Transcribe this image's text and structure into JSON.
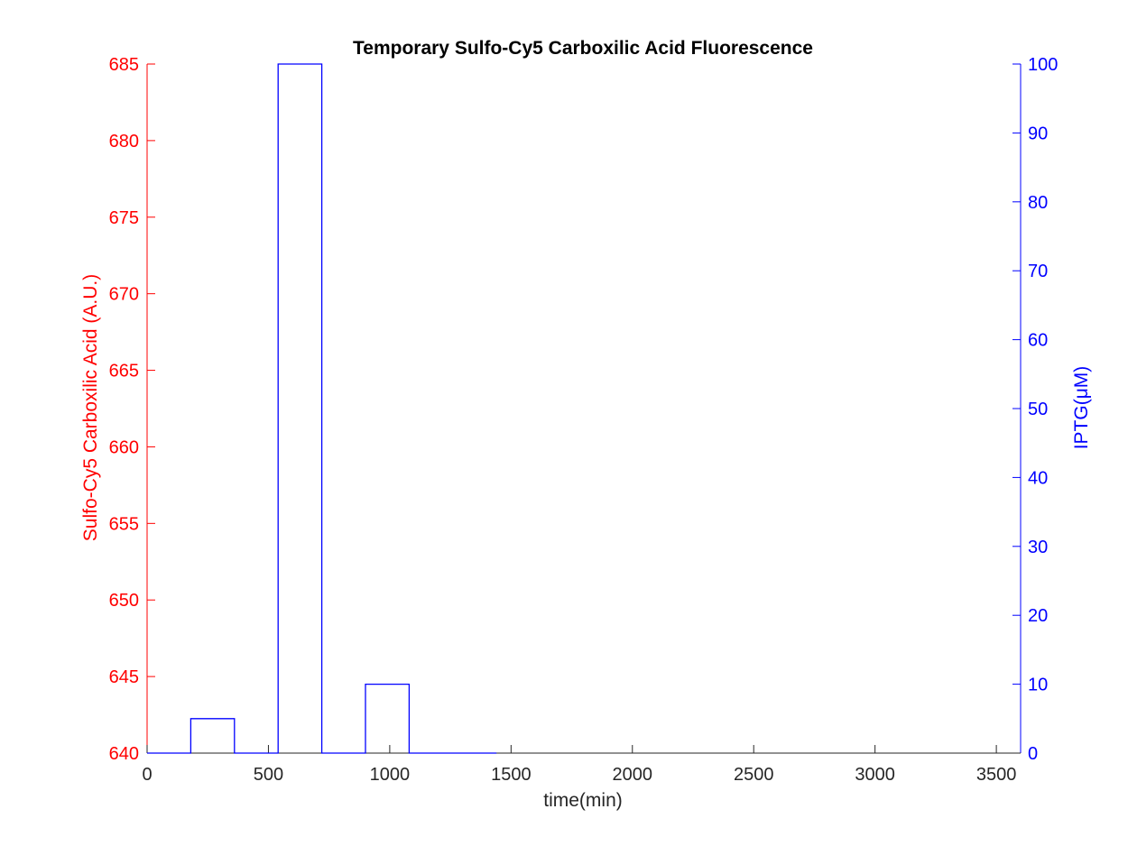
{
  "chart_data": {
    "type": "line",
    "step": true,
    "title": "Temporary Sulfo-Cy5 Carboxilic Acid Fluorescence",
    "xlabel": "time(min)",
    "xlim": [
      0,
      3600
    ],
    "xticks": [
      0,
      500,
      1000,
      1500,
      2000,
      2500,
      3000,
      3500
    ],
    "x_tick_labels": [
      "0",
      "500",
      "1000",
      "1500",
      "2000",
      "2500",
      "3000",
      "3500"
    ],
    "grid": false,
    "colors": {
      "left_axis": "#ff0000",
      "right_axis": "#0000ff",
      "series": "#0000ff",
      "frame": "#262626"
    },
    "left_axis": {
      "label": "Sulfo-Cy5 Carboxilic Acid (A.U.)",
      "ylim": [
        640,
        685
      ],
      "ticks": [
        640,
        645,
        650,
        655,
        660,
        665,
        670,
        675,
        680,
        685
      ],
      "tick_labels": [
        "640",
        "645",
        "650",
        "655",
        "660",
        "665",
        "670",
        "675",
        "680",
        "685"
      ]
    },
    "right_axis": {
      "label": "IPTG(μM)",
      "ylim": [
        0,
        100
      ],
      "ticks": [
        0,
        10,
        20,
        30,
        40,
        50,
        60,
        70,
        80,
        90,
        100
      ],
      "tick_labels": [
        "0",
        "10",
        "20",
        "30",
        "40",
        "50",
        "60",
        "70",
        "80",
        "90",
        "100"
      ]
    },
    "series": [
      {
        "axis": "right",
        "x": [
          0,
          180,
          180,
          360,
          360,
          540,
          540,
          720,
          720,
          900,
          900,
          1080,
          1080,
          1440
        ],
        "y": [
          0,
          0,
          5,
          5,
          0,
          0,
          100,
          100,
          0,
          0,
          10,
          10,
          0,
          0
        ]
      }
    ]
  }
}
